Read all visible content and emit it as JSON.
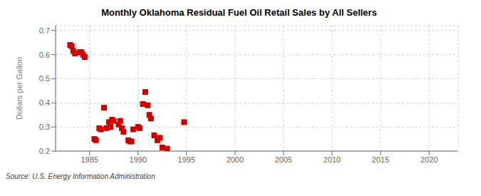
{
  "chart_data": {
    "type": "scatter",
    "title": "Monthly Oklahoma Residual Fuel Oil Retail Sales by All Sellers",
    "ylabel": "Dollars per Gallon",
    "annotations": [
      "Source: U.S. Energy Information Administration"
    ],
    "x": [
      1983.0,
      1983.17,
      1983.33,
      1983.5,
      1984.0,
      1984.17,
      1984.33,
      1984.5,
      1985.5,
      1985.67,
      1986.0,
      1986.17,
      1986.5,
      1986.75,
      1987.0,
      1987.17,
      1987.33,
      1987.5,
      1988.0,
      1988.17,
      1988.33,
      1988.5,
      1989.0,
      1989.17,
      1989.33,
      1989.5,
      1990.0,
      1990.17,
      1990.5,
      1990.75,
      1991.0,
      1991.17,
      1991.33,
      1991.67,
      1992.0,
      1992.25,
      1992.5,
      1993.0,
      1994.75
    ],
    "values": [
      0.64,
      0.635,
      0.615,
      0.605,
      0.61,
      0.61,
      0.6,
      0.59,
      0.25,
      0.245,
      0.295,
      0.29,
      0.38,
      0.295,
      0.32,
      0.3,
      0.33,
      0.325,
      0.31,
      0.325,
      0.295,
      0.28,
      0.245,
      0.24,
      0.24,
      0.29,
      0.3,
      0.295,
      0.395,
      0.445,
      0.39,
      0.35,
      0.335,
      0.265,
      0.245,
      0.255,
      0.215,
      0.21,
      0.32
    ],
    "color": "#cc0000",
    "marker": "square",
    "xlim": [
      1981.5,
      2023
    ],
    "ylim": [
      0.2,
      0.72
    ],
    "xticks": [
      1985,
      1990,
      1995,
      2000,
      2005,
      2010,
      2015,
      2020
    ],
    "yticks": [
      0.2,
      0.3,
      0.4,
      0.5,
      0.6,
      0.7
    ],
    "grid": true
  }
}
